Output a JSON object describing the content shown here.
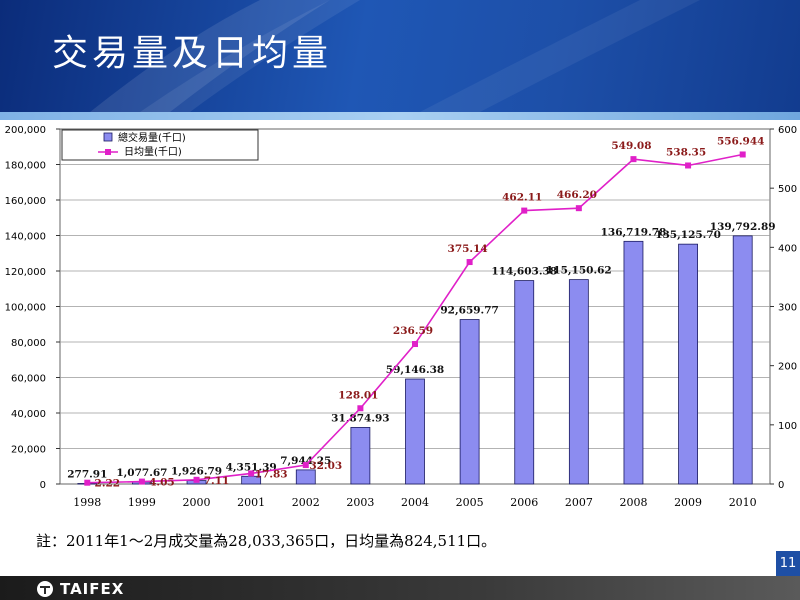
{
  "header": {
    "title": "交易量及日均量"
  },
  "note": "註：2011年1～2月成交量為28,033,365口，日均量為824,511口。",
  "footer": {
    "logo_text": "TAIFEX",
    "page_number": "11"
  },
  "colors": {
    "bar_fill": "#8c8cf0",
    "bar_stroke": "#1a1a60",
    "line": "#e020c8",
    "line_label": "#8b1a1a",
    "header": "#1f57b5"
  },
  "chart_data": {
    "type": "bar+line",
    "categories": [
      "1998",
      "1999",
      "2000",
      "2001",
      "2002",
      "2003",
      "2004",
      "2005",
      "2006",
      "2007",
      "2008",
      "2009",
      "2010"
    ],
    "series": [
      {
        "name": "總交易量(千口)",
        "type": "bar",
        "axis": "left",
        "values": [
          277.91,
          1077.67,
          1926.79,
          4351.39,
          7944.25,
          31874.93,
          59146.38,
          92659.77,
          114603.38,
          115150.62,
          136719.78,
          135125.7,
          139792.89
        ],
        "labels": [
          "277.91",
          "1,077.67",
          "1,926.79",
          "4,351.39",
          "7,944.25",
          "31,874.93",
          "59,146.38",
          "92,659.77",
          "114,603.38",
          "115,150.62",
          "136,719.78",
          "135,125.70",
          "139,792.89"
        ]
      },
      {
        "name": "日均量(千口)",
        "type": "line",
        "axis": "right",
        "values": [
          2.22,
          4.05,
          7.11,
          17.83,
          32.03,
          128.01,
          236.59,
          375.14,
          462.11,
          466.2,
          549.08,
          538.35,
          556.944
        ],
        "labels": [
          "2.22",
          "4.05",
          "7.11",
          "17.83",
          "32.03",
          "128.01",
          "236.59",
          "375.14",
          "462.11",
          "466.20",
          "549.08",
          "538.35",
          "556.944"
        ]
      }
    ],
    "y_left": {
      "min": 0,
      "max": 200000,
      "ticks": [
        "0",
        "20,000",
        "40,000",
        "60,000",
        "80,000",
        "100,000",
        "120,000",
        "140,000",
        "160,000",
        "180,000",
        "200,000"
      ]
    },
    "y_right": {
      "min": 0,
      "max": 600,
      "ticks": [
        "0",
        "100",
        "200",
        "300",
        "400",
        "500",
        "600"
      ]
    },
    "grid": "horizontal",
    "legend": "top-left"
  }
}
